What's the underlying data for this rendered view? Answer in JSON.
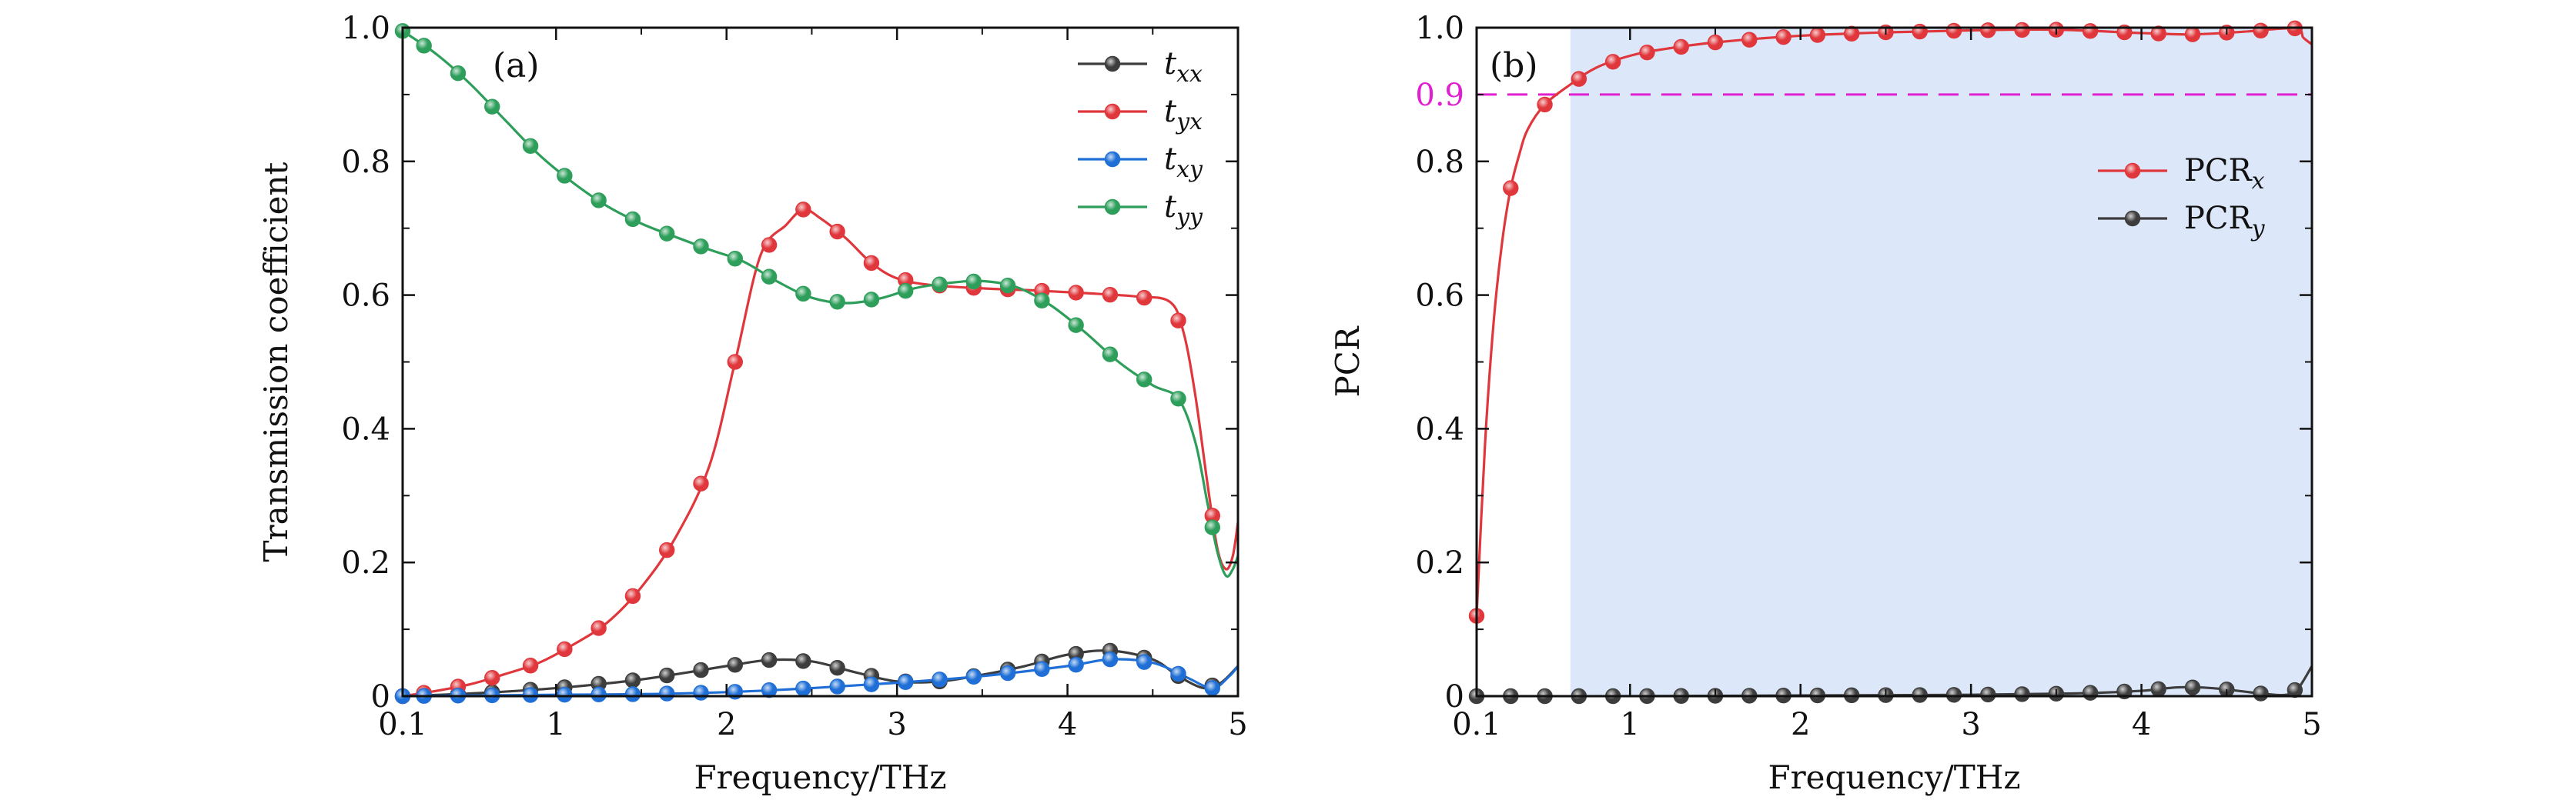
{
  "chart_data": [
    {
      "type": "line",
      "panel_label": "(a)",
      "xlabel": "Frequency/THz",
      "ylabel": "Transmission coefficient",
      "xlim": [
        0.1,
        5
      ],
      "ylim": [
        0,
        1
      ],
      "x_ticks": [
        0.1,
        1,
        2,
        3,
        4,
        5
      ],
      "x_tick_labels": [
        "0.1",
        "1",
        "2",
        "3",
        "4",
        "5"
      ],
      "y_ticks": [
        0,
        0.2,
        0.4,
        0.6,
        0.8,
        1.0
      ],
      "y_tick_labels": [
        "0",
        "0.2",
        "0.4",
        "0.6",
        "0.8",
        "1.0"
      ],
      "legend_position": "top-right",
      "series": [
        {
          "name": "t_xx",
          "legend_main": "t",
          "legend_sub": "xx",
          "color": "#3d3d3d",
          "curve": {
            "x": [
              0.1,
              0.5,
              1,
              1.5,
              2,
              2.25,
              2.5,
              2.75,
              3,
              3.25,
              3.5,
              3.75,
              4,
              4.25,
              4.5,
              4.65,
              4.8,
              4.9,
              5
            ],
            "y": [
              0,
              0.004,
              0.012,
              0.025,
              0.045,
              0.054,
              0.052,
              0.036,
              0.022,
              0.022,
              0.032,
              0.045,
              0.062,
              0.068,
              0.055,
              0.03,
              0.012,
              0.02,
              0.045
            ]
          },
          "marker_x": [
            0.1,
            0.225,
            0.425,
            0.625,
            0.85,
            1.05,
            1.25,
            1.45,
            1.65,
            1.85,
            2.05,
            2.25,
            2.45,
            2.65,
            2.85,
            3.05,
            3.25,
            3.45,
            3.65,
            3.85,
            4.05,
            4.25,
            4.45,
            4.65,
            4.85
          ]
        },
        {
          "name": "t_yx",
          "legend_main": "t",
          "legend_sub": "yx",
          "color": "#e0373c",
          "curve": {
            "x": [
              0.1,
              0.3,
              0.5,
              0.7,
              0.9,
              1.1,
              1.3,
              1.5,
              1.7,
              1.9,
              2.05,
              2.2,
              2.35,
              2.45,
              2.55,
              2.7,
              2.85,
              3.0,
              3.2,
              3.5,
              3.8,
              4.1,
              4.4,
              4.6,
              4.68,
              4.75,
              4.82,
              4.88,
              4.93,
              4.97,
              5.0
            ],
            "y": [
              0,
              0.008,
              0.018,
              0.033,
              0.05,
              0.077,
              0.11,
              0.163,
              0.237,
              0.345,
              0.5,
              0.66,
              0.705,
              0.728,
              0.715,
              0.685,
              0.648,
              0.625,
              0.615,
              0.61,
              0.607,
              0.603,
              0.598,
              0.59,
              0.545,
              0.45,
              0.32,
              0.22,
              0.19,
              0.21,
              0.26
            ]
          },
          "marker_x": [
            0.1,
            0.225,
            0.425,
            0.625,
            0.85,
            1.05,
            1.25,
            1.45,
            1.65,
            1.85,
            2.05,
            2.25,
            2.45,
            2.65,
            2.85,
            3.05,
            3.25,
            3.45,
            3.65,
            3.85,
            4.05,
            4.25,
            4.45,
            4.65,
            4.85
          ]
        },
        {
          "name": "t_xy",
          "legend_main": "t",
          "legend_sub": "xy",
          "color": "#1f6fd6",
          "curve": {
            "x": [
              0.1,
              0.5,
              1,
              1.5,
              2,
              2.5,
              3,
              3.5,
              4,
              4.25,
              4.5,
              4.7,
              4.85,
              4.95,
              5
            ],
            "y": [
              0,
              0.001,
              0.002,
              0.003,
              0.006,
              0.012,
              0.02,
              0.03,
              0.045,
              0.055,
              0.05,
              0.028,
              0.012,
              0.03,
              0.045
            ]
          },
          "marker_x": [
            0.1,
            0.225,
            0.425,
            0.625,
            0.85,
            1.05,
            1.25,
            1.45,
            1.65,
            1.85,
            2.05,
            2.25,
            2.45,
            2.65,
            2.85,
            3.05,
            3.25,
            3.45,
            3.65,
            3.85,
            4.05,
            4.25,
            4.45,
            4.65,
            4.85
          ]
        },
        {
          "name": "t_yy",
          "legend_main": "t",
          "legend_sub": "yy",
          "color": "#2e9e5b",
          "curve": {
            "x": [
              0.1,
              0.3,
              0.5,
              0.7,
              0.9,
              1.1,
              1.3,
              1.5,
              1.7,
              1.9,
              2.1,
              2.3,
              2.5,
              2.7,
              2.9,
              3.1,
              3.3,
              3.5,
              3.7,
              3.9,
              4.1,
              4.3,
              4.5,
              4.65,
              4.75,
              4.82,
              4.88,
              4.93,
              4.97,
              5.0
            ],
            "y": [
              0.995,
              0.96,
              0.915,
              0.862,
              0.81,
              0.768,
              0.733,
              0.707,
              0.687,
              0.668,
              0.65,
              0.62,
              0.596,
              0.588,
              0.595,
              0.61,
              0.618,
              0.621,
              0.612,
              0.585,
              0.545,
              0.5,
              0.465,
              0.445,
              0.38,
              0.29,
              0.215,
              0.18,
              0.19,
              0.21
            ]
          },
          "marker_x": [
            0.1,
            0.225,
            0.425,
            0.625,
            0.85,
            1.05,
            1.25,
            1.45,
            1.65,
            1.85,
            2.05,
            2.25,
            2.45,
            2.65,
            2.85,
            3.05,
            3.25,
            3.45,
            3.65,
            3.85,
            4.05,
            4.25,
            4.45,
            4.65,
            4.85
          ]
        }
      ]
    },
    {
      "type": "line",
      "panel_label": "(b)",
      "xlabel": "Frequency/THz",
      "ylabel": "PCR",
      "xlim": [
        0.1,
        5
      ],
      "ylim": [
        0,
        1
      ],
      "x_ticks": [
        0.1,
        1,
        2,
        3,
        4,
        5
      ],
      "x_tick_labels": [
        "0.1",
        "1",
        "2",
        "3",
        "4",
        "5"
      ],
      "y_ticks": [
        0,
        0.2,
        0.4,
        0.6,
        0.8,
        1.0
      ],
      "y_tick_labels": [
        "0",
        "0.2",
        "0.4",
        "0.6",
        "0.8",
        "1.0"
      ],
      "legend_position": "right",
      "shaded_region": {
        "x_from": 0.65,
        "x_to": 5,
        "color": "#dce8fa"
      },
      "threshold": {
        "y": 0.9,
        "label": "0.9",
        "color": "#e020d0"
      },
      "series": [
        {
          "name": "PCR_x",
          "legend_main": "PCR",
          "legend_sub": "x",
          "color": "#e0373c",
          "curve": {
            "x": [
              0.1,
              0.15,
              0.2,
              0.25,
              0.3,
              0.35,
              0.4,
              0.5,
              0.65,
              0.8,
              1.0,
              1.2,
              1.5,
              2.0,
              2.5,
              3.0,
              3.5,
              4.0,
              4.3,
              4.6,
              4.9,
              4.95,
              5.0
            ],
            "y": [
              0.12,
              0.38,
              0.56,
              0.68,
              0.76,
              0.81,
              0.848,
              0.885,
              0.915,
              0.94,
              0.958,
              0.968,
              0.978,
              0.988,
              0.993,
              0.996,
              0.997,
              0.992,
              0.99,
              0.994,
              0.999,
              0.985,
              0.975
            ]
          },
          "marker_x": [
            0.1,
            0.3,
            0.5,
            0.7,
            0.9,
            1.1,
            1.3,
            1.5,
            1.7,
            1.9,
            2.1,
            2.3,
            2.5,
            2.7,
            2.9,
            3.1,
            3.3,
            3.5,
            3.7,
            3.9,
            4.1,
            4.3,
            4.5,
            4.7,
            4.9
          ]
        },
        {
          "name": "PCR_y",
          "legend_main": "PCR",
          "legend_sub": "y",
          "color": "#3d3d3d",
          "curve": {
            "x": [
              0.1,
              1,
              2,
              3,
              3.6,
              4.0,
              4.2,
              4.35,
              4.5,
              4.7,
              4.85,
              4.92,
              5.0
            ],
            "y": [
              0,
              0,
              0.001,
              0.002,
              0.004,
              0.008,
              0.013,
              0.013,
              0.01,
              0.004,
              0.002,
              0.012,
              0.045
            ]
          },
          "marker_x": [
            0.1,
            0.3,
            0.5,
            0.7,
            0.9,
            1.1,
            1.3,
            1.5,
            1.7,
            1.9,
            2.1,
            2.3,
            2.5,
            2.7,
            2.9,
            3.1,
            3.3,
            3.5,
            3.7,
            3.9,
            4.1,
            4.3,
            4.5,
            4.7,
            4.9
          ]
        }
      ]
    }
  ]
}
